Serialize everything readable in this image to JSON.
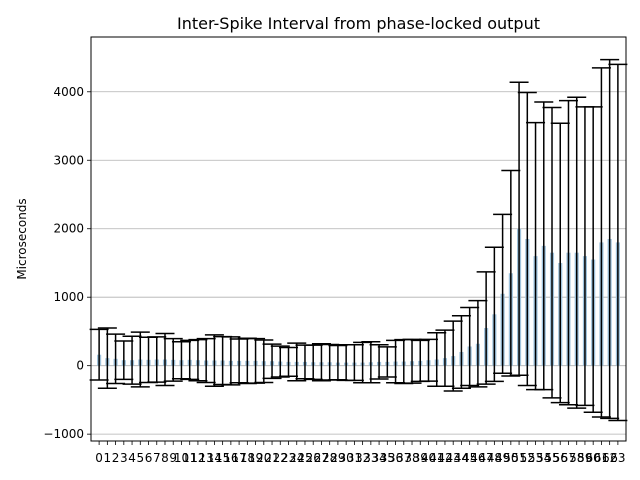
{
  "chart_data": {
    "type": "bar",
    "title": "Inter-Spike Interval from phase-locked output",
    "xlabel": "",
    "ylabel": "Microseconds",
    "ylim": [
      -1100,
      4800
    ],
    "yticks": [
      -1000,
      0,
      1000,
      2000,
      3000,
      4000
    ],
    "ytick_labels": [
      "−1000",
      "0",
      "1000",
      "2000",
      "3000",
      "4000"
    ],
    "grid": "y",
    "bar_color": "#9fc3dd",
    "error_color": "#000000",
    "categories": [
      "0",
      "1",
      "2",
      "3",
      "4",
      "5",
      "6",
      "7",
      "8",
      "9",
      "10",
      "11",
      "12",
      "13",
      "14",
      "15",
      "16",
      "17",
      "18",
      "19",
      "20",
      "21",
      "22",
      "23",
      "24",
      "25",
      "26",
      "27",
      "28",
      "29",
      "30",
      "31",
      "32",
      "33",
      "34",
      "35",
      "36",
      "37",
      "38",
      "39",
      "40",
      "41",
      "42",
      "43",
      "44",
      "45",
      "46",
      "47",
      "48",
      "49",
      "50",
      "51",
      "52",
      "53",
      "54",
      "55",
      "56",
      "57",
      "58",
      "59",
      "60",
      "61",
      "62",
      "63"
    ],
    "values": [
      160,
      110,
      100,
      80,
      80,
      90,
      85,
      90,
      90,
      85,
      80,
      85,
      80,
      75,
      75,
      75,
      70,
      70,
      70,
      70,
      65,
      65,
      60,
      55,
      55,
      55,
      50,
      50,
      50,
      45,
      45,
      45,
      45,
      50,
      55,
      55,
      60,
      60,
      65,
      70,
      80,
      90,
      110,
      140,
      200,
      280,
      320,
      550,
      750,
      1050,
      1350,
      2000,
      1850,
      1600,
      1750,
      1650,
      1500,
      1650,
      1650,
      1600,
      1550,
      1800,
      1850,
      1800
    ],
    "errors": [
      370,
      440,
      360,
      280,
      350,
      400,
      330,
      330,
      380,
      310,
      270,
      285,
      300,
      320,
      375,
      350,
      350,
      320,
      330,
      325,
      310,
      250,
      225,
      210,
      275,
      245,
      250,
      270,
      260,
      250,
      260,
      260,
      295,
      300,
      250,
      220,
      310,
      320,
      320,
      300,
      305,
      390,
      410,
      510,
      530,
      570,
      630,
      820,
      980,
      1160,
      1500,
      2140,
      2140,
      1950,
      2100,
      2120,
      2040,
      2220,
      2270,
      2180,
      2230,
      2550,
      2620,
      2600
    ]
  }
}
